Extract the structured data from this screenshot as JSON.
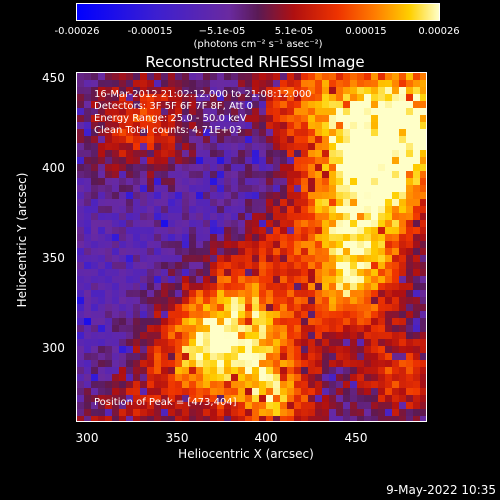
{
  "colorbar": {
    "ticks": [
      "-0.00026",
      "-0.00015",
      "−5.1e-05",
      "5.1e-05",
      "0.00015",
      "0.00026"
    ],
    "units": "(photons cm⁻² s⁻¹ asec⁻²)"
  },
  "plot": {
    "title": "Reconstructed RHESSI Image",
    "info_lines": [
      "16-Mar-2012 21:02:12.000 to 21:08:12.000",
      "Detectors: 3F 5F 6F 7F 8F, Att 0",
      "Energy Range: 25.0 - 50.0 keV",
      "Clean    Total counts: 4.71E+03"
    ],
    "peak_text": "Position of Peak = [473,404]",
    "xlabel": "Heliocentric X (arcsec)",
    "ylabel": "Heliocentric Y (arcsec)",
    "xticks": [
      "300",
      "350",
      "400",
      "450"
    ],
    "yticks": [
      "450",
      "400",
      "350",
      "300"
    ]
  },
  "footer": {
    "date": "9-May-2022 10:35"
  },
  "colors": {
    "background": "#000000",
    "text": "#ffffff"
  }
}
